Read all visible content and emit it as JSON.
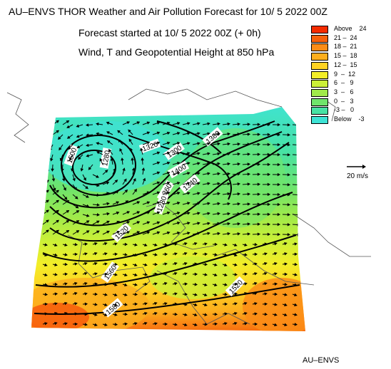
{
  "header": {
    "line1": "AU–ENVS THOR Weather and Air Pollution Forecast for 10/ 5 2022  00Z",
    "line2": "Forecast started at 10/ 5 2022  00Z (+ 0h)",
    "line3": "Wind, T and Geopotential Height at 850 hPa"
  },
  "legend": [
    {
      "label": "Above    24",
      "color": "#f42c00"
    },
    {
      "label": "21 –  24",
      "color": "#f7610c"
    },
    {
      "label": "18 –  21",
      "color": "#fb8c16"
    },
    {
      "label": "15 –  18",
      "color": "#fdae1d"
    },
    {
      "label": "12 –  15",
      "color": "#fed323"
    },
    {
      "label": "9  –  12",
      "color": "#f3ee28"
    },
    {
      "label": "6  –   9",
      "color": "#cbf037"
    },
    {
      "label": "3  –   6",
      "color": "#a0ea4a"
    },
    {
      "label": "0  –   3",
      "color": "#6fe46b"
    },
    {
      "label": "-3 –   0",
      "color": "#47e2a4"
    },
    {
      "label": "Below    -3",
      "color": "#3ee3d5"
    }
  ],
  "wind_scale": {
    "label": "20 m/s"
  },
  "contour_labels": [
    "1500",
    "1280",
    "1320",
    "1400",
    "1360",
    "1340",
    "1380",
    "1300",
    "1280",
    "1520",
    "1560",
    "1520",
    "1580"
  ],
  "footer": "AU–ENVS"
}
